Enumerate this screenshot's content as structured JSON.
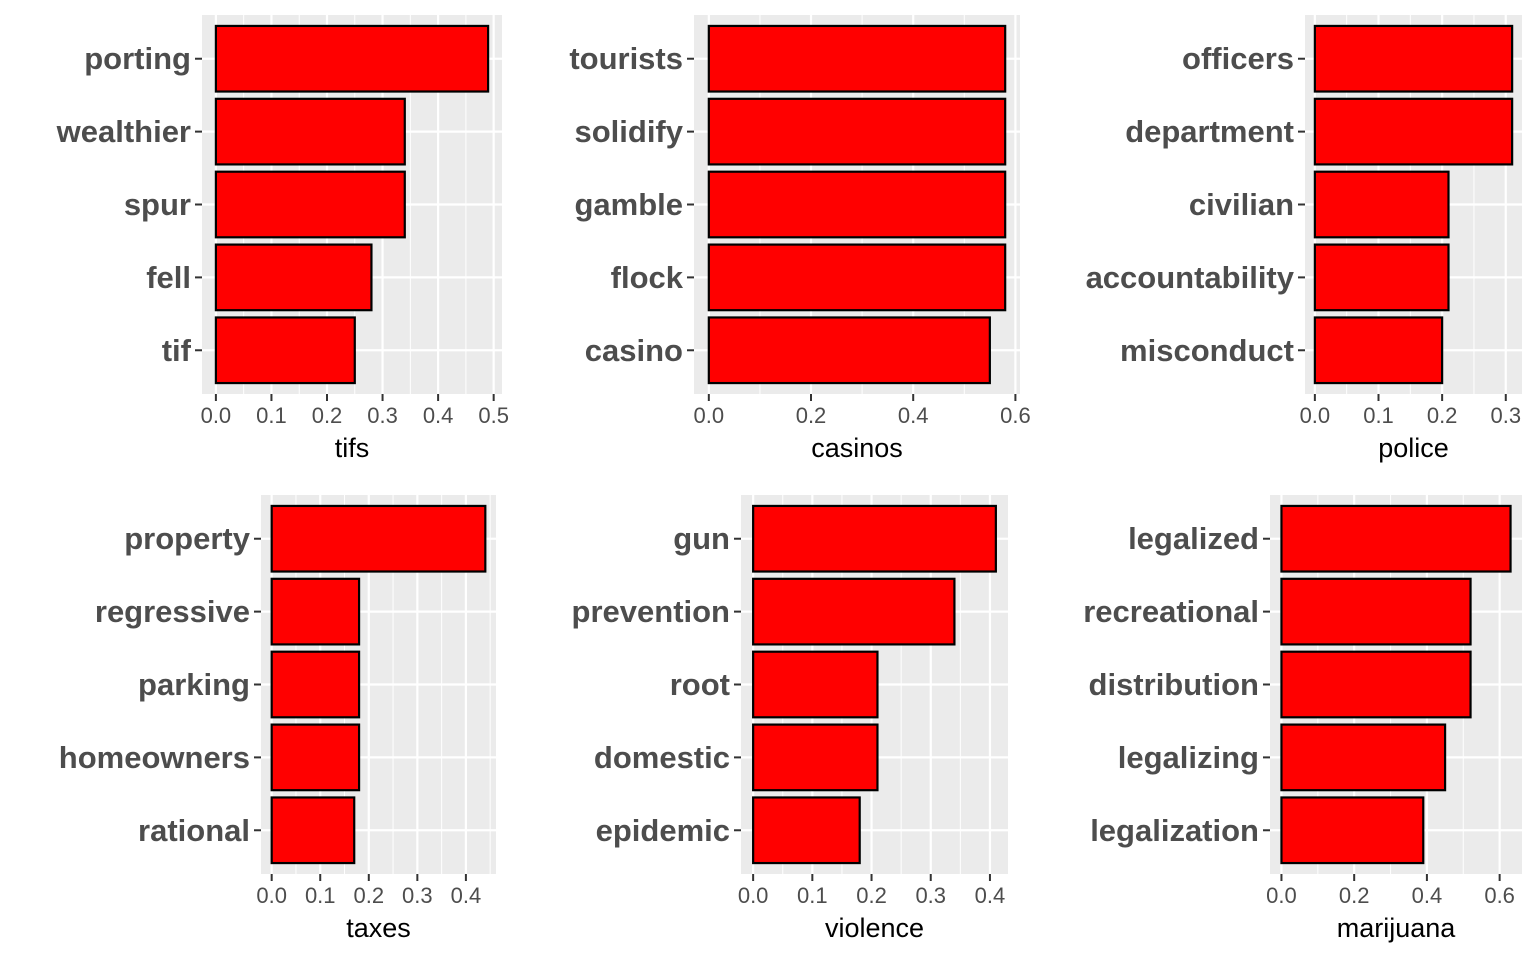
{
  "colors": {
    "bar_fill": "#ff0000",
    "bar_stroke": "#000000",
    "panel_background": "#ebebeb",
    "grid_major": "#ffffff",
    "text": "#4d4d4d"
  },
  "chart_data": [
    {
      "type": "bar",
      "orientation": "horizontal",
      "xlabel": "tifs",
      "categories": [
        "porting",
        "wealthier",
        "spur",
        "fell",
        "tif"
      ],
      "values": [
        0.49,
        0.34,
        0.34,
        0.28,
        0.25
      ],
      "xlim": [
        -0.025,
        0.515
      ],
      "ticks": [
        0.0,
        0.1,
        0.2,
        0.3,
        0.4,
        0.5
      ],
      "tick_labels": [
        "0.0",
        "0.1",
        "0.2",
        "0.3",
        "0.4",
        "0.5"
      ],
      "grid": true
    },
    {
      "type": "bar",
      "orientation": "horizontal",
      "xlabel": "casinos",
      "categories": [
        "tourists",
        "solidify",
        "gamble",
        "flock",
        "casino"
      ],
      "values": [
        0.58,
        0.58,
        0.58,
        0.58,
        0.55
      ],
      "xlim": [
        -0.029,
        0.609
      ],
      "ticks": [
        0.0,
        0.2,
        0.4,
        0.6
      ],
      "tick_labels": [
        "0.0",
        "0.2",
        "0.4",
        "0.6"
      ],
      "grid": true
    },
    {
      "type": "bar",
      "orientation": "horizontal",
      "xlabel": "police",
      "categories": [
        "officers",
        "department",
        "civilian",
        "accountability",
        "misconduct"
      ],
      "values": [
        0.31,
        0.31,
        0.21,
        0.21,
        0.2
      ],
      "xlim": [
        -0.0155,
        0.3255
      ],
      "ticks": [
        0.0,
        0.1,
        0.2,
        0.3
      ],
      "tick_labels": [
        "0.0",
        "0.1",
        "0.2",
        "0.3"
      ],
      "grid": true
    },
    {
      "type": "bar",
      "orientation": "horizontal",
      "xlabel": "taxes",
      "categories": [
        "property",
        "regressive",
        "parking",
        "homeowners",
        "rational"
      ],
      "values": [
        0.44,
        0.18,
        0.18,
        0.18,
        0.17
      ],
      "xlim": [
        -0.022,
        0.462
      ],
      "ticks": [
        0.0,
        0.1,
        0.2,
        0.3,
        0.4
      ],
      "tick_labels": [
        "0.0",
        "0.1",
        "0.2",
        "0.3",
        "0.4"
      ],
      "grid": true
    },
    {
      "type": "bar",
      "orientation": "horizontal",
      "xlabel": "violence",
      "categories": [
        "gun",
        "prevention",
        "root",
        "domestic",
        "epidemic"
      ],
      "values": [
        0.41,
        0.34,
        0.21,
        0.21,
        0.18
      ],
      "xlim": [
        -0.0205,
        0.4305
      ],
      "ticks": [
        0.0,
        0.1,
        0.2,
        0.3,
        0.4
      ],
      "tick_labels": [
        "0.0",
        "0.1",
        "0.2",
        "0.3",
        "0.4"
      ],
      "grid": true
    },
    {
      "type": "bar",
      "orientation": "horizontal",
      "xlabel": "marijuana",
      "categories": [
        "legalized",
        "recreational",
        "distribution",
        "legalizing",
        "legalization"
      ],
      "values": [
        0.63,
        0.52,
        0.52,
        0.45,
        0.39
      ],
      "xlim": [
        -0.0315,
        0.6615
      ],
      "ticks": [
        0.0,
        0.2,
        0.4,
        0.6
      ],
      "tick_labels": [
        "0.0",
        "0.2",
        "0.4",
        "0.6"
      ],
      "grid": true
    }
  ]
}
